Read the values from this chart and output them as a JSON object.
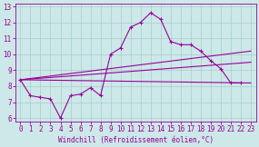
{
  "xlabel": "Windchill (Refroidissement éolien,°C)",
  "background_color": "#cce8e8",
  "grid_color": "#aacccc",
  "line_color": "#990099",
  "xlim": [
    -0.5,
    23.5
  ],
  "ylim": [
    5.8,
    13.2
  ],
  "yticks": [
    6,
    7,
    8,
    9,
    10,
    11,
    12,
    13
  ],
  "xticks": [
    0,
    1,
    2,
    3,
    4,
    5,
    6,
    7,
    8,
    9,
    10,
    11,
    12,
    13,
    14,
    15,
    16,
    17,
    18,
    19,
    20,
    21,
    22,
    23
  ],
  "zigzag_x": [
    0,
    1,
    2,
    3,
    4,
    5,
    6,
    7,
    8,
    9,
    10,
    11,
    12,
    13,
    14,
    15,
    16,
    17,
    18,
    19,
    20,
    21,
    22
  ],
  "zigzag_y": [
    8.4,
    7.4,
    7.3,
    7.2,
    6.0,
    7.4,
    7.5,
    7.9,
    7.4,
    10.0,
    10.4,
    11.7,
    12.0,
    12.6,
    12.2,
    10.8,
    10.6,
    10.6,
    10.2,
    9.6,
    9.1,
    8.2,
    8.2
  ],
  "straight_lines": [
    {
      "x0": 0,
      "y0": 8.4,
      "x1": 23,
      "y1": 8.2
    },
    {
      "x0": 0,
      "y0": 8.4,
      "x1": 23,
      "y1": 9.5
    },
    {
      "x0": 0,
      "y0": 8.4,
      "x1": 23,
      "y1": 10.2
    }
  ],
  "tick_fontsize": 5.5,
  "xlabel_fontsize": 5.5
}
